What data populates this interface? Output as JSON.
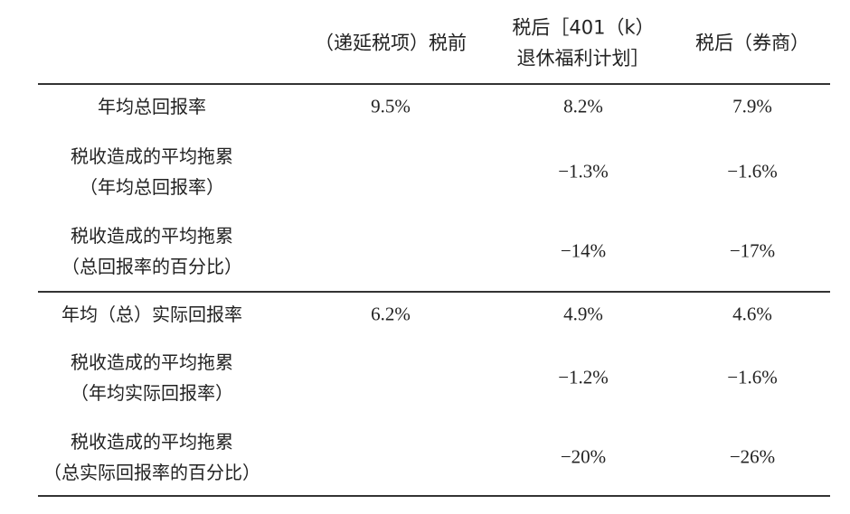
{
  "table": {
    "header": [
      [
        "（递延税项）税前"
      ],
      [
        "税后［401（k）",
        "退休福利计划］"
      ],
      [
        "税后（券商）"
      ]
    ],
    "rows": [
      {
        "label": [
          "年均总回报率"
        ],
        "cells": [
          "9.5%",
          "8.2%",
          "7.9%"
        ]
      },
      {
        "label": [
          "税收造成的平均拖累",
          "（年均总回报率）"
        ],
        "cells": [
          null,
          "−1.3%",
          "−1.6%"
        ]
      },
      {
        "label": [
          "税收造成的平均拖累",
          "（总回报率的百分比）"
        ],
        "cells": [
          null,
          "−14%",
          "−17%"
        ]
      },
      {
        "label": [
          "年均（总）实际回报率"
        ],
        "cells": [
          "6.2%",
          "4.9%",
          "4.6%"
        ]
      },
      {
        "label": [
          "税收造成的平均拖累",
          "（年均实际回报率）"
        ],
        "cells": [
          null,
          "−1.2%",
          "−1.6%"
        ]
      },
      {
        "label": [
          "税收造成的平均拖累",
          "（总实际回报率的百分比）"
        ],
        "cells": [
          null,
          "−20%",
          "−26%"
        ]
      }
    ]
  }
}
